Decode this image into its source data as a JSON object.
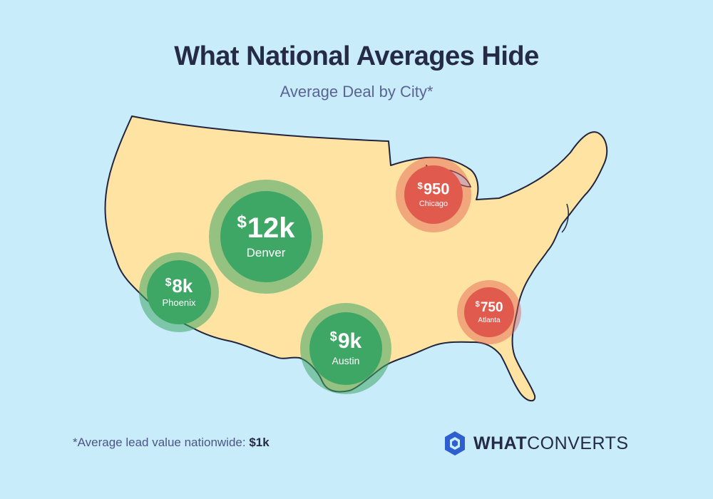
{
  "title": "What National Averages Hide",
  "subtitle": "Average Deal by City*",
  "cities": {
    "denver": {
      "value": "12k",
      "currency": "$",
      "name": "Denver",
      "status": "above-average",
      "color": "#3fa766"
    },
    "phoenix": {
      "value": "8k",
      "currency": "$",
      "name": "Phoenix",
      "status": "above-average",
      "color": "#3fa766"
    },
    "austin": {
      "value": "9k",
      "currency": "$",
      "name": "Austin",
      "status": "above-average",
      "color": "#3fa766"
    },
    "chicago": {
      "value": "950",
      "currency": "$",
      "name": "Chicago",
      "status": "below-average",
      "color": "#e05a4e"
    },
    "atlanta": {
      "value": "750",
      "currency": "$",
      "name": "Atlanta",
      "status": "below-average",
      "color": "#e05a4e"
    }
  },
  "footnote": {
    "text": "*Average lead value nationwide: ",
    "value": "$1k"
  },
  "brand": {
    "logo_icon": "hexagon-logo-icon",
    "bold": "WHAT",
    "regular": "CONVERTS"
  },
  "colors": {
    "background": "#c9ecfb",
    "land": "#ffe3a3",
    "outline": "#20243f",
    "title": "#252a45",
    "subtitle": "#5a6493"
  }
}
